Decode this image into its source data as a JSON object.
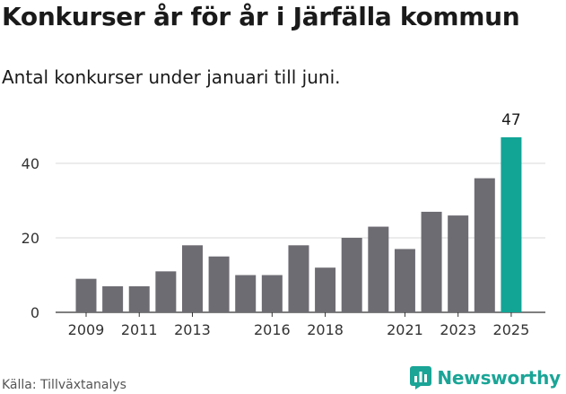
{
  "title": "Konkurser år för år i Järfälla kommun",
  "subtitle": "Antal konkurser under januari till juni.",
  "source": "Källa: Tillväxtanalys",
  "brand": {
    "name": "Newsworthy",
    "icon": "newsworthy-logo-icon",
    "color": "#1aa597"
  },
  "colors": {
    "bar": "#6e6c73",
    "highlight": "#12a596",
    "grid": "#d9d9d9",
    "axis": "#333333"
  },
  "chart_data": {
    "type": "bar",
    "x": [
      2009,
      2010,
      2011,
      2012,
      2013,
      2014,
      2015,
      2016,
      2017,
      2018,
      2019,
      2020,
      2021,
      2022,
      2023,
      2024,
      2025
    ],
    "values": [
      9,
      7,
      7,
      11,
      18,
      15,
      10,
      10,
      18,
      12,
      20,
      23,
      17,
      27,
      26,
      36,
      47
    ],
    "xticks": [
      "2009",
      "2011",
      "2013",
      "2016",
      "2018",
      "2021",
      "2023",
      "2025"
    ],
    "yticks": [
      0,
      20,
      40
    ],
    "ylim": [
      0,
      50
    ],
    "highlight_index": 16,
    "highlight_label": "47",
    "grid": true
  }
}
